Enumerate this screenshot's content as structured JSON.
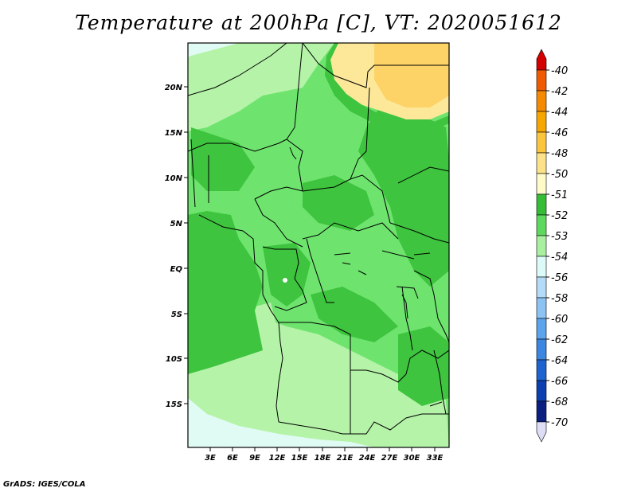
{
  "title": "Temperature at 200hPa [C], VT: 2020051612",
  "credit": "GrADS: IGES/COLA",
  "map": {
    "lat_ticks": [
      "20N",
      "15N",
      "10N",
      "5N",
      "EQ",
      "5S",
      "10S",
      "15S"
    ],
    "lon_ticks": [
      "3E",
      "6E",
      "9E",
      "12E",
      "15E",
      "18E",
      "21E",
      "24E",
      "27E",
      "30E",
      "33E"
    ],
    "fill_colors": {
      "c51": "#3ec43e",
      "c52": "#6ee46e",
      "c53": "#b5f3a8",
      "c54": "#e0fbf4",
      "c50": "#fde899",
      "c48": "#fdd266"
    }
  },
  "colorbar": {
    "labels": [
      "-40",
      "-42",
      "-44",
      "-46",
      "-48",
      "-50",
      "-51",
      "-52",
      "-53",
      "-54",
      "-56",
      "-58",
      "-60",
      "-62",
      "-64",
      "-66",
      "-68",
      "-70"
    ],
    "colors": [
      "#e31a00",
      "#f05a00",
      "#f58a00",
      "#f7a600",
      "#fbc63c",
      "#fde28a",
      "#fffbc8",
      "#35bd35",
      "#5ed95e",
      "#a8f0a0",
      "#dcfbf8",
      "#b4dcf8",
      "#8cc3f3",
      "#5ca4eb",
      "#3a86e0",
      "#1d64d0",
      "#0c3fb0",
      "#0a1f80",
      "#080c55"
    ],
    "top_arrow_color": "#d40000",
    "bottom_arrow_color": "#ddddf5"
  }
}
